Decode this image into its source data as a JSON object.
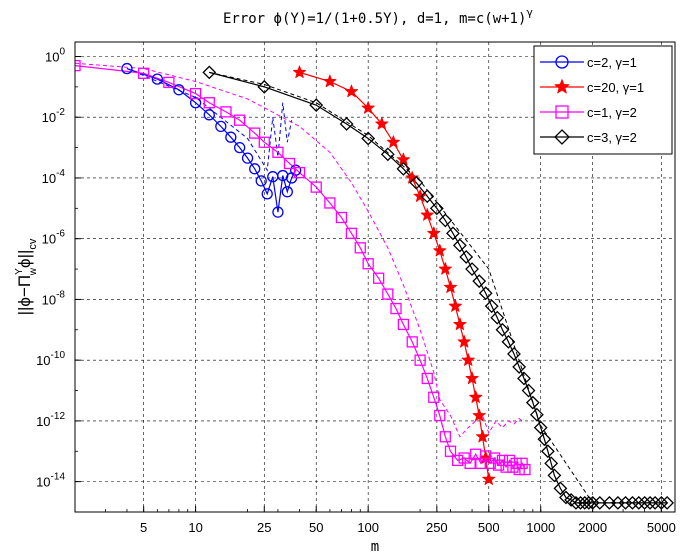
{
  "chart_data": {
    "type": "line",
    "title": "Error ϕ(Y)=1/(1+0.5Y), d=1, m=c(w+1)",
    "title_superscript": "γ",
    "xlabel": "m",
    "ylabel": "||ϕ−Π",
    "ylabel_sup": "Y",
    "ylabel_sub": "w",
    "ylabel_tail": "ϕ||",
    "ylabel_norm_sub": "cv",
    "x_scale": "log",
    "y_scale": "log",
    "xlim": [
      2,
      6000
    ],
    "ylim": [
      1e-15,
      3
    ],
    "x_ticks": [
      {
        "value": 5,
        "label": "5"
      },
      {
        "value": 10,
        "label": "10"
      },
      {
        "value": 25,
        "label": "25"
      },
      {
        "value": 50,
        "label": "50"
      },
      {
        "value": 100,
        "label": "100"
      },
      {
        "value": 250,
        "label": "250"
      },
      {
        "value": 500,
        "label": "500"
      },
      {
        "value": 1000,
        "label": "1000"
      },
      {
        "value": 2000,
        "label": "2000"
      },
      {
        "value": 5000,
        "label": "5000"
      }
    ],
    "y_ticks": [
      {
        "value": 1.0,
        "base": "10",
        "exp": "0"
      },
      {
        "value": 0.01,
        "base": "10",
        "exp": "-2"
      },
      {
        "value": 0.0001,
        "base": "10",
        "exp": "-4"
      },
      {
        "value": 1e-06,
        "base": "10",
        "exp": "-6"
      },
      {
        "value": 1e-08,
        "base": "10",
        "exp": "-8"
      },
      {
        "value": 1e-10,
        "base": "10",
        "exp": "-10"
      },
      {
        "value": 1e-12,
        "base": "10",
        "exp": "-12"
      },
      {
        "value": 1e-14,
        "base": "10",
        "exp": "-14"
      }
    ],
    "grid": "dashed at major ticks",
    "legend_position": "top-right",
    "series": [
      {
        "name": "c=2, γ=1",
        "legend_prefix": "c=2, ",
        "legend_symbol": "γ",
        "legend_suffix": "=1",
        "color": "#0000ff",
        "marker": "circle",
        "x": [
          4,
          6,
          8,
          10,
          12,
          14,
          16,
          18,
          20,
          22,
          24,
          26,
          28,
          30,
          32,
          34,
          36,
          38
        ],
        "y": [
          0.4,
          0.18,
          0.08,
          0.03,
          0.012,
          0.005,
          0.0022,
          0.001,
          0.00045,
          0.0002,
          8e-05,
          3e-05,
          0.00011,
          7.5e-06,
          0.00012,
          3.5e-05,
          0.0001,
          0.00018
        ],
        "dashed_x": [
          4,
          10,
          20,
          26,
          28,
          30,
          32,
          34,
          36
        ],
        "dashed_y": [
          0.4,
          0.045,
          0.002,
          0.00018,
          0.01,
          0.0005,
          0.03,
          0.0015,
          0.008
        ]
      },
      {
        "name": "c=20, γ=1",
        "legend_prefix": "c=20, ",
        "legend_symbol": "γ",
        "legend_suffix": "=1",
        "color": "#ff0000",
        "marker": "star",
        "x": [
          40,
          60,
          80,
          100,
          120,
          140,
          160,
          180,
          200,
          220,
          240,
          260,
          280,
          300,
          320,
          340,
          360,
          380,
          400,
          420,
          440,
          460,
          480,
          500
        ],
        "y": [
          0.3,
          0.15,
          0.07,
          0.02,
          0.006,
          0.0015,
          0.0004,
          0.0001,
          2.5e-05,
          6e-06,
          1.5e-06,
          4e-07,
          1e-07,
          2.5e-08,
          6e-09,
          1.5e-09,
          4e-10,
          1e-10,
          2.5e-11,
          6e-12,
          1.5e-12,
          3e-13,
          6e-14,
          1.2e-14
        ]
      },
      {
        "name": "c=1, γ=2",
        "legend_prefix": "c=1, ",
        "legend_symbol": "γ",
        "legend_suffix": "=2",
        "color": "#ff00ff",
        "marker": "square",
        "x": [
          2,
          5,
          7,
          10,
          12,
          15,
          18,
          22,
          25,
          30,
          35,
          40,
          50,
          60,
          70,
          80,
          90,
          100,
          115,
          130,
          145,
          160,
          180,
          200,
          220,
          240,
          260,
          280,
          300,
          330,
          360,
          390,
          420,
          450,
          480,
          510,
          540,
          570,
          600,
          630,
          660,
          690,
          720,
          750,
          780,
          810
        ],
        "y": [
          0.5,
          0.28,
          0.14,
          0.06,
          0.03,
          0.015,
          0.008,
          0.003,
          0.0015,
          0.0007,
          0.0003,
          0.00015,
          5e-05,
          1.5e-05,
          5e-06,
          1.5e-06,
          5e-07,
          1.5e-07,
          5e-08,
          1.5e-08,
          5e-09,
          1.5e-09,
          4e-10,
          1e-10,
          2.5e-11,
          6e-12,
          1.5e-12,
          3e-13,
          1e-13,
          5e-14,
          6e-14,
          4e-14,
          8e-14,
          4e-14,
          7e-14,
          4e-14,
          6e-14,
          3.5e-14,
          5e-14,
          3e-14,
          5e-14,
          3e-14,
          4e-14,
          2.5e-14,
          4e-14,
          2.5e-14
        ],
        "dashed_x": [
          2,
          5,
          10,
          20,
          40,
          60,
          80,
          100,
          130,
          160,
          200,
          240,
          260,
          300,
          340,
          380,
          420,
          460,
          500,
          550,
          600,
          650,
          700,
          750,
          800
        ],
        "dashed_y": [
          0.6,
          0.4,
          0.15,
          0.04,
          0.005,
          0.0007,
          7e-05,
          8e-06,
          5e-07,
          3e-08,
          1e-09,
          4e-11,
          5e-12,
          1.5e-12,
          3e-13,
          6e-13,
          1e-12,
          1.5e-12,
          4e-13,
          1e-12,
          6e-13,
          1e-12,
          8e-13,
          1.2e-12,
          9e-13
        ]
      },
      {
        "name": "c=3, γ=2",
        "legend_prefix": "c=3, ",
        "legend_symbol": "γ",
        "legend_suffix": "=2",
        "color": "#000000",
        "marker": "diamond",
        "x": [
          12,
          25,
          50,
          75,
          100,
          130,
          160,
          190,
          220,
          250,
          280,
          310,
          340,
          370,
          400,
          440,
          480,
          520,
          560,
          600,
          650,
          700,
          750,
          800,
          850,
          900,
          950,
          1000,
          1050,
          1100,
          1150,
          1200,
          1300,
          1400,
          1500,
          1600,
          1700,
          1800,
          1900,
          2000,
          2200,
          2500,
          2800,
          3100,
          3400,
          3700,
          4000,
          4300,
          4600,
          5000,
          5400
        ],
        "y": [
          0.3,
          0.1,
          0.025,
          0.006,
          0.002,
          0.0006,
          0.0002,
          7e-05,
          2.5e-05,
          1e-05,
          4e-06,
          1.5e-06,
          6e-07,
          2.5e-07,
          1e-07,
          4e-08,
          1.6e-08,
          6e-09,
          2.5e-09,
          1e-09,
          4e-10,
          1.6e-10,
          6e-11,
          2.5e-11,
          1e-11,
          4e-12,
          1.6e-12,
          6e-13,
          2.5e-13,
          1e-13,
          4e-14,
          1.6e-14,
          6e-15,
          3e-15,
          2.5e-15,
          2e-15,
          2e-15,
          2e-15,
          2e-15,
          2e-15,
          2e-15,
          2e-15,
          2e-15,
          2e-15,
          2e-15,
          2e-15,
          2e-15,
          2e-15,
          2e-15,
          2e-15,
          2e-15
        ],
        "dashed_x": [
          12,
          25,
          50,
          100,
          200,
          500,
          1000,
          2000,
          5000
        ],
        "dashed_y": [
          0.3,
          0.12,
          0.03,
          0.0025,
          8e-05,
          1e-07,
          7e-13,
          2e-15,
          2e-15
        ]
      }
    ]
  }
}
